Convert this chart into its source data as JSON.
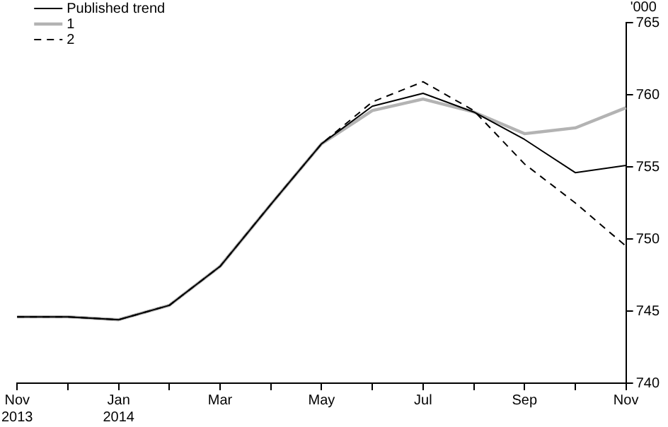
{
  "chart_data": {
    "type": "line",
    "ylabel": "'000",
    "categories": [
      "Nov 2013",
      null,
      "Jan 2014",
      null,
      "Mar",
      null,
      "May",
      null,
      "Jul",
      null,
      "Sep",
      null,
      "Nov"
    ],
    "ylim": [
      740,
      765
    ],
    "yticks": [
      740,
      745,
      750,
      755,
      760,
      765
    ],
    "grid": false,
    "legend": "top left",
    "marker": "none",
    "series": [
      {
        "name": "Published trend",
        "color": "#000000",
        "line_style": "solid",
        "values": [
          744.6,
          744.6,
          744.4,
          745.4,
          748.1,
          752.4,
          756.6,
          759.2,
          760.1,
          758.8,
          756.9,
          754.6,
          755.1
        ]
      },
      {
        "name": "1",
        "color": "#b3b3b3",
        "line_style": "solid",
        "values": [
          744.6,
          744.6,
          744.4,
          745.4,
          748.1,
          752.4,
          756.6,
          758.9,
          759.7,
          758.8,
          757.3,
          757.7,
          759.1
        ]
      },
      {
        "name": "2",
        "color": "#000000",
        "line_style": "dashed",
        "values": [
          744.6,
          744.6,
          744.4,
          745.4,
          748.1,
          752.4,
          756.6,
          759.5,
          760.9,
          758.9,
          755.2,
          752.5,
          749.5
        ]
      }
    ]
  }
}
